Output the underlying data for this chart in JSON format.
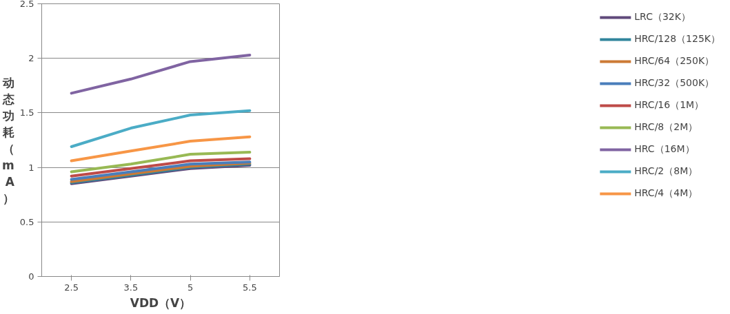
{
  "chart_data": {
    "type": "line",
    "xlabel": "VDD（V）",
    "ylabel": "动态功耗（mA）",
    "categories": [
      "2.5",
      "3.5",
      "5",
      "5.5"
    ],
    "ylim": [
      0,
      2.5
    ],
    "yticks": [
      0,
      0.5,
      1,
      1.5,
      2,
      2.5
    ],
    "grid": "y",
    "legend": "right",
    "line_style": "solid",
    "marker": "none",
    "series": [
      {
        "name": "LRC（32K）",
        "color": "#604a7b",
        "values": [
          0.85,
          0.92,
          0.99,
          1.02
        ]
      },
      {
        "name": "HRC/128（125K）",
        "color": "#31859c",
        "values": [
          0.86,
          0.93,
          1.0,
          1.03
        ]
      },
      {
        "name": "HRC/64（250K）",
        "color": "#cc7a35",
        "values": [
          0.87,
          0.94,
          1.01,
          1.04
        ]
      },
      {
        "name": "HRC/32（500K）",
        "color": "#4a7ebb",
        "values": [
          0.89,
          0.96,
          1.03,
          1.05
        ]
      },
      {
        "name": "HRC/16（1M）",
        "color": "#be4b48",
        "values": [
          0.92,
          0.99,
          1.06,
          1.08
        ]
      },
      {
        "name": "HRC/8（2M）",
        "color": "#98b954",
        "values": [
          0.96,
          1.03,
          1.12,
          1.14
        ]
      },
      {
        "name": "HRC（16M）",
        "color": "#8064a2",
        "values": [
          1.68,
          1.81,
          1.97,
          2.03
        ]
      },
      {
        "name": "HRC/2（8M）",
        "color": "#4bacc6",
        "values": [
          1.19,
          1.36,
          1.48,
          1.52
        ]
      },
      {
        "name": "HRC/4（4M）",
        "color": "#f79646",
        "values": [
          1.06,
          1.15,
          1.24,
          1.28
        ]
      }
    ]
  }
}
